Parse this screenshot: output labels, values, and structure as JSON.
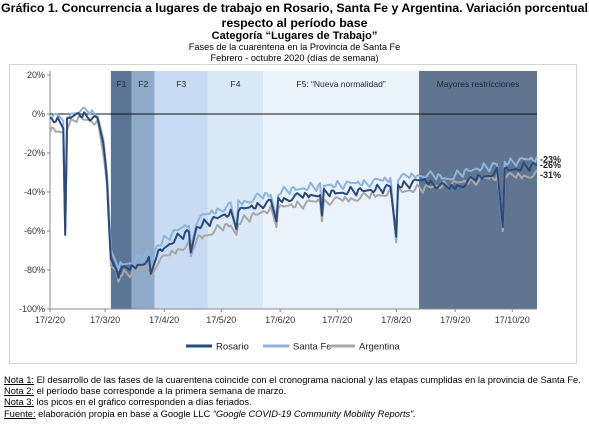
{
  "header": {
    "title_line1": "Gráfico 1. Concurrencia a lugares de trabajo en Rosario, Santa Fe y Argentina. Variación porcentual",
    "title_line2": "respecto al período base",
    "category": "Categoría “Lugares de Trabajo”",
    "subtitle1": "Fases de la cuarentena en la Provincia de Santa Fe",
    "subtitle2": "Febrero - octubre 2020 (días de semana)"
  },
  "chart_data": {
    "type": "line",
    "title": "",
    "xlabel": "",
    "ylabel": "",
    "x_start": "2020-02-17",
    "x_end": "2020-10-30",
    "x_tick_labels": [
      "17/2/20",
      "17/3/20",
      "17/4/20",
      "17/5/20",
      "17/6/20",
      "17/7/20",
      "17/8/20",
      "17/9/20",
      "17/10/20"
    ],
    "x_tick_dates": [
      "2020-02-17",
      "2020-03-17",
      "2020-04-17",
      "2020-05-17",
      "2020-06-17",
      "2020-07-17",
      "2020-08-17",
      "2020-09-17",
      "2020-10-17"
    ],
    "ylim": [
      -100,
      20
    ],
    "y_ticks": [
      20,
      0,
      -20,
      -40,
      -60,
      -80,
      -100
    ],
    "y_tick_labels": [
      "20%",
      "0%",
      "-20%",
      "-40%",
      "-60%",
      "-80%",
      "-100%"
    ],
    "grid": false,
    "legend_position": "bottom",
    "phases": [
      {
        "label": "F1",
        "start": "2020-03-20",
        "end": "2020-03-31",
        "color": "#5b7597"
      },
      {
        "label": "F2",
        "start": "2020-03-31",
        "end": "2020-04-12",
        "color": "#8fa9c9"
      },
      {
        "label": "F3",
        "start": "2020-04-12",
        "end": "2020-05-10",
        "color": "#c7dcf2"
      },
      {
        "label": "F4",
        "start": "2020-05-10",
        "end": "2020-06-08",
        "color": "#dbe8f6"
      },
      {
        "label": "F5: “Nueva normalidad”",
        "start": "2020-06-08",
        "end": "2020-08-29",
        "color": "#eaf2fb"
      },
      {
        "label": "Mayores restricciones",
        "start": "2020-08-29",
        "end": "2020-10-30",
        "color": "#5f7590"
      }
    ],
    "series": [
      {
        "name": "Rosario",
        "color": "#2a4a7c",
        "end_label": "-26%",
        "base": [
          [
            "2020-02-17",
            -2
          ],
          [
            "2020-02-24",
            -5
          ],
          [
            "2020-03-02",
            0
          ],
          [
            "2020-03-09",
            -1
          ],
          [
            "2020-03-13",
            -3
          ],
          [
            "2020-03-16",
            -15
          ],
          [
            "2020-03-18",
            -35
          ],
          [
            "2020-03-20",
            -75
          ],
          [
            "2020-03-25",
            -80
          ],
          [
            "2020-03-31",
            -79
          ],
          [
            "2020-04-06",
            -76
          ],
          [
            "2020-04-13",
            -72
          ],
          [
            "2020-04-20",
            -66
          ],
          [
            "2020-04-27",
            -62
          ],
          [
            "2020-05-04",
            -58
          ],
          [
            "2020-05-11",
            -55
          ],
          [
            "2020-05-18",
            -52
          ],
          [
            "2020-05-25",
            -50
          ],
          [
            "2020-06-01",
            -48
          ],
          [
            "2020-06-08",
            -46
          ],
          [
            "2020-06-22",
            -43
          ],
          [
            "2020-07-06",
            -41
          ],
          [
            "2020-07-20",
            -40
          ],
          [
            "2020-08-03",
            -39
          ],
          [
            "2020-08-17",
            -37
          ],
          [
            "2020-08-31",
            -34
          ],
          [
            "2020-09-07",
            -36
          ],
          [
            "2020-09-14",
            -38
          ],
          [
            "2020-09-21",
            -36
          ],
          [
            "2020-09-28",
            -33
          ],
          [
            "2020-10-05",
            -31
          ],
          [
            "2020-10-12",
            -29
          ],
          [
            "2020-10-19",
            -28
          ],
          [
            "2020-10-30",
            -26
          ]
        ],
        "dips": [
          [
            "2020-02-25",
            -62
          ],
          [
            "2020-03-24",
            -84
          ],
          [
            "2020-04-10",
            -82
          ],
          [
            "2020-05-01",
            -71
          ],
          [
            "2020-05-25",
            -59
          ],
          [
            "2020-06-15",
            -55
          ],
          [
            "2020-06-20",
            -54
          ],
          [
            "2020-07-09",
            -52
          ],
          [
            "2020-08-17",
            -63
          ],
          [
            "2020-10-12",
            -58
          ]
        ]
      },
      {
        "name": "Santa Fe",
        "color": "#8db3df",
        "end_label": "-23%",
        "base": [
          [
            "2020-02-17",
            0
          ],
          [
            "2020-02-24",
            -3
          ],
          [
            "2020-03-02",
            2
          ],
          [
            "2020-03-09",
            1
          ],
          [
            "2020-03-13",
            -1
          ],
          [
            "2020-03-16",
            -12
          ],
          [
            "2020-03-18",
            -30
          ],
          [
            "2020-03-20",
            -72
          ],
          [
            "2020-03-25",
            -77
          ],
          [
            "2020-03-31",
            -76
          ],
          [
            "2020-04-06",
            -73
          ],
          [
            "2020-04-13",
            -68
          ],
          [
            "2020-04-20",
            -62
          ],
          [
            "2020-04-27",
            -58
          ],
          [
            "2020-05-04",
            -54
          ],
          [
            "2020-05-11",
            -51
          ],
          [
            "2020-05-18",
            -48
          ],
          [
            "2020-05-25",
            -46
          ],
          [
            "2020-06-01",
            -44
          ],
          [
            "2020-06-08",
            -42
          ],
          [
            "2020-06-22",
            -39
          ],
          [
            "2020-07-06",
            -37
          ],
          [
            "2020-07-20",
            -36
          ],
          [
            "2020-08-03",
            -35
          ],
          [
            "2020-08-17",
            -33
          ],
          [
            "2020-08-31",
            -31
          ],
          [
            "2020-09-07",
            -32
          ],
          [
            "2020-09-14",
            -33
          ],
          [
            "2020-09-21",
            -30
          ],
          [
            "2020-09-28",
            -28
          ],
          [
            "2020-10-05",
            -27
          ],
          [
            "2020-10-12",
            -25
          ],
          [
            "2020-10-19",
            -24
          ],
          [
            "2020-10-30",
            -23
          ]
        ],
        "dips": [
          [
            "2020-02-25",
            -60
          ],
          [
            "2020-03-24",
            -80
          ],
          [
            "2020-04-10",
            -78
          ],
          [
            "2020-05-01",
            -68
          ],
          [
            "2020-05-25",
            -60
          ],
          [
            "2020-06-15",
            -53
          ],
          [
            "2020-06-20",
            -52
          ],
          [
            "2020-07-09",
            -50
          ],
          [
            "2020-08-17",
            -66
          ],
          [
            "2020-10-12",
            -60
          ]
        ]
      },
      {
        "name": "Argentina",
        "color": "#a8a8a8",
        "end_label": "-31%",
        "base": [
          [
            "2020-02-17",
            -8
          ],
          [
            "2020-02-24",
            -9
          ],
          [
            "2020-03-02",
            -2
          ],
          [
            "2020-03-09",
            -3
          ],
          [
            "2020-03-13",
            -5
          ],
          [
            "2020-03-16",
            -18
          ],
          [
            "2020-03-18",
            -38
          ],
          [
            "2020-03-20",
            -78
          ],
          [
            "2020-03-25",
            -82
          ],
          [
            "2020-03-31",
            -81
          ],
          [
            "2020-04-06",
            -79
          ],
          [
            "2020-04-13",
            -76
          ],
          [
            "2020-04-20",
            -72
          ],
          [
            "2020-04-27",
            -68
          ],
          [
            "2020-05-04",
            -64
          ],
          [
            "2020-05-11",
            -61
          ],
          [
            "2020-05-18",
            -58
          ],
          [
            "2020-05-25",
            -56
          ],
          [
            "2020-06-01",
            -53
          ],
          [
            "2020-06-08",
            -50
          ],
          [
            "2020-06-22",
            -47
          ],
          [
            "2020-07-06",
            -45
          ],
          [
            "2020-07-20",
            -44
          ],
          [
            "2020-08-03",
            -42
          ],
          [
            "2020-08-17",
            -40
          ],
          [
            "2020-08-31",
            -38
          ],
          [
            "2020-09-07",
            -37
          ],
          [
            "2020-09-14",
            -36
          ],
          [
            "2020-09-21",
            -35
          ],
          [
            "2020-09-28",
            -34
          ],
          [
            "2020-10-05",
            -33
          ],
          [
            "2020-10-12",
            -32
          ],
          [
            "2020-10-19",
            -32
          ],
          [
            "2020-10-30",
            -31
          ]
        ],
        "dips": [
          [
            "2020-02-25",
            -58
          ],
          [
            "2020-03-24",
            -86
          ],
          [
            "2020-04-10",
            -84
          ],
          [
            "2020-05-01",
            -73
          ],
          [
            "2020-05-25",
            -62
          ],
          [
            "2020-06-15",
            -58
          ],
          [
            "2020-06-20",
            -57
          ],
          [
            "2020-07-09",
            -55
          ],
          [
            "2020-08-17",
            -60
          ],
          [
            "2020-10-12",
            -55
          ]
        ]
      }
    ]
  },
  "notes": [
    {
      "key": "Nota 1:",
      "text": " El desarrollo de las fases de la cuarentena coincide con el cronograma nacional y las etapas cumplidas en la provincia de Santa Fe.",
      "italic": ""
    },
    {
      "key": "Nota 2:",
      "text": " el período base corresponde a la primera semana de marzo.",
      "italic": ""
    },
    {
      "key": "Nota 3:",
      "text": " los picos en el gráfico corresponden a días feriados.",
      "italic": ""
    },
    {
      "key": "Fuente:",
      "text": " elaboración propia en base a Google LLC ",
      "italic": "“Google COVID-19 Community Mobility Reports”."
    }
  ]
}
